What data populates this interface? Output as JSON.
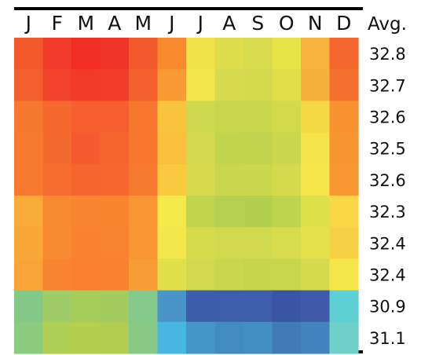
{
  "chart_data": {
    "type": "heatmap",
    "columns": [
      "J",
      "F",
      "M",
      "A",
      "M",
      "J",
      "J",
      "A",
      "S",
      "O",
      "N",
      "D"
    ],
    "avg_header": "Avg.",
    "row_averages": [
      "32.8",
      "32.7",
      "32.6",
      "32.5",
      "32.6",
      "32.3",
      "32.4",
      "32.4",
      "30.9",
      "31.1"
    ],
    "cell_colors": [
      [
        "#f25a2e",
        "#f23b2a",
        "#f02e26",
        "#f03428",
        "#f25a2e",
        "#f9892f",
        "#f2e24a",
        "#dedd4c",
        "#d8dc4c",
        "#e6e449",
        "#f6b43c",
        "#f5682e"
      ],
      [
        "#f35e2e",
        "#f2412a",
        "#f13a28",
        "#f03e29",
        "#f3602e",
        "#f89b33",
        "#f3e64b",
        "#d6da4c",
        "#d4da4c",
        "#e0df4a",
        "#f7b23b",
        "#f5702f"
      ],
      [
        "#f6772f",
        "#f5682e",
        "#f5602e",
        "#f5602e",
        "#f6762f",
        "#f9c43e",
        "#cfd94d",
        "#c9d74d",
        "#c8d64d",
        "#d2da4c",
        "#f5d846",
        "#f8922f"
      ],
      [
        "#f6792f",
        "#f56a2e",
        "#f55a2e",
        "#f5652e",
        "#f7772f",
        "#f9bf3d",
        "#d2d94c",
        "#c1d44e",
        "#c0d44e",
        "#cbd84d",
        "#f5e44a",
        "#f7952f"
      ],
      [
        "#f6792f",
        "#f56c2e",
        "#f5662e",
        "#f6682e",
        "#f7782f",
        "#f9c93f",
        "#d6da4c",
        "#cad74d",
        "#cbd84d",
        "#d4da4c",
        "#f6e64a",
        "#f8972f"
      ],
      [
        "#f8ab36",
        "#f88a31",
        "#f8852f",
        "#f8862f",
        "#f89633",
        "#f4eb4b",
        "#c1d44e",
        "#b6d14f",
        "#b4d04f",
        "#bfd44e",
        "#dfe14a",
        "#f8d846"
      ],
      [
        "#f8a837",
        "#f88a31",
        "#f8822f",
        "#f8842f",
        "#f89634",
        "#f2e74b",
        "#d5dc4c",
        "#d1da4c",
        "#d1da4c",
        "#d7dc4c",
        "#e4e24a",
        "#f8d245"
      ],
      [
        "#f8a437",
        "#f88430",
        "#f8802f",
        "#f8822f",
        "#f89c35",
        "#dfe04a",
        "#d1da4c",
        "#c9d74d",
        "#c5d64d",
        "#c6d64d",
        "#d5da4c",
        "#f5e64a"
      ],
      [
        "#84c887",
        "#a0cb69",
        "#a6cc5a",
        "#a3cb5e",
        "#84c88a",
        "#4a95c8",
        "#3c5eaa",
        "#3d5fab",
        "#3e5ea9",
        "#3a55a4",
        "#3e5aa8",
        "#5ecfd2"
      ],
      [
        "#8acb80",
        "#aed054",
        "#b3d04f",
        "#b0cf52",
        "#88ca85",
        "#47b7e2",
        "#4496c8",
        "#428cc2",
        "#438fc4",
        "#3f7bb7",
        "#4384be",
        "#6ed0c8"
      ]
    ],
    "legend": "none",
    "grid": false
  }
}
